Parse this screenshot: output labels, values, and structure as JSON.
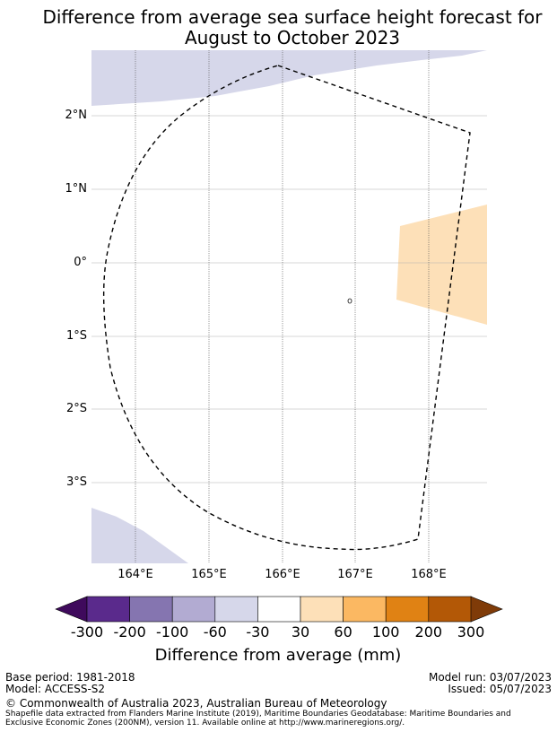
{
  "title": {
    "line1": "Difference from average sea surface height forecast for",
    "line2": "August to October 2023"
  },
  "map": {
    "lat_labels": [
      "2°N",
      "1°N",
      "0°",
      "1°S",
      "2°S",
      "3°S"
    ],
    "lon_labels": [
      "164°E",
      "165°E",
      "166°E",
      "167°E",
      "168°E"
    ],
    "colors": {
      "light_purple": "#d6d7ea",
      "light_orange": "#fde0b8",
      "grid": "#b0b0b0",
      "boundary": "#000000"
    }
  },
  "colorbar": {
    "title": "Difference from average (mm)",
    "tick_labels": [
      "-300",
      "-200",
      "-100",
      "-60",
      "-30",
      "30",
      "60",
      "100",
      "200",
      "300"
    ],
    "colors": [
      "#3f0a5c",
      "#5a2a8c",
      "#8575b0",
      "#b2abd2",
      "#d6d7ea",
      "#ffffff",
      "#fde0b8",
      "#fbb862",
      "#e08214",
      "#b35806",
      "#7f3b08"
    ]
  },
  "footer": {
    "base_period": "Base period: 1981-2018",
    "model": "Model: ACCESS-S2",
    "model_run": "Model run: 03/07/2023",
    "issued": "Issued: 05/07/2023",
    "copyright": "© Commonwealth of Australia 2023, Australian Bureau of Meteorology",
    "shapefile_line1": "Shapefile data extracted from Flanders Marine Institute (2019), Maritime Boundaries Geodatabase: Maritime Boundaries and",
    "shapefile_line2": "Exclusive Economic Zones (200NM), version 11. Available online at http://www.marineregions.org/."
  }
}
